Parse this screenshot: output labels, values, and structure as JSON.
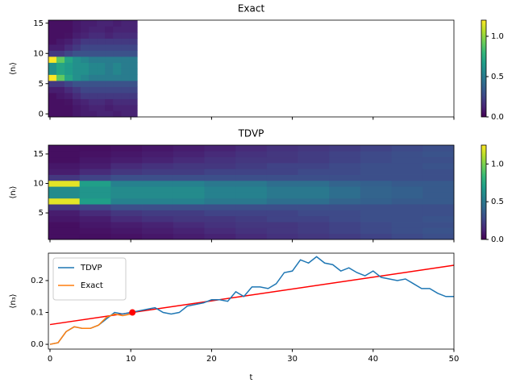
{
  "chart_data": [
    {
      "type": "heatmap",
      "title": "Exact",
      "y_label": "⟨nᵢ⟩",
      "xlim": [
        -0.2,
        50
      ],
      "xticks": [
        0,
        10,
        20,
        30,
        40,
        50
      ],
      "ylim": [
        -0.5,
        15.5
      ],
      "yticks": [
        0,
        5,
        10,
        15
      ],
      "image_xlim": [
        -0.2,
        10.8
      ],
      "clim": [
        0,
        1.2
      ],
      "cticks": [
        {
          "value": 0,
          "label": "0.0"
        },
        {
          "value": 0.5,
          "label": "0.5"
        },
        {
          "value": 1,
          "label": "1.0"
        }
      ],
      "z": [
        [
          0.05,
          0.05,
          0.05,
          0.08,
          0.1,
          0.1,
          0.12,
          0.12,
          0.1,
          0.12,
          0.12
        ],
        [
          0.05,
          0.05,
          0.05,
          0.08,
          0.1,
          0.12,
          0.12,
          0.1,
          0.12,
          0.12,
          0.12
        ],
        [
          0.05,
          0.05,
          0.06,
          0.1,
          0.12,
          0.15,
          0.15,
          0.12,
          0.15,
          0.15,
          0.15
        ],
        [
          0.05,
          0.08,
          0.1,
          0.15,
          0.2,
          0.2,
          0.2,
          0.2,
          0.2,
          0.2,
          0.2
        ],
        [
          0.1,
          0.1,
          0.15,
          0.2,
          0.25,
          0.25,
          0.25,
          0.25,
          0.25,
          0.25,
          0.25
        ],
        [
          0.2,
          0.2,
          0.25,
          0.3,
          0.3,
          0.3,
          0.3,
          0.3,
          0.3,
          0.3,
          0.3
        ],
        [
          1.2,
          0.9,
          0.7,
          0.6,
          0.55,
          0.5,
          0.5,
          0.5,
          0.5,
          0.5,
          0.5
        ],
        [
          0.6,
          0.7,
          0.65,
          0.6,
          0.6,
          0.55,
          0.55,
          0.5,
          0.55,
          0.5,
          0.5
        ],
        [
          0.6,
          0.7,
          0.65,
          0.6,
          0.6,
          0.55,
          0.55,
          0.5,
          0.55,
          0.5,
          0.5
        ],
        [
          1.2,
          0.9,
          0.7,
          0.6,
          0.55,
          0.5,
          0.5,
          0.5,
          0.5,
          0.5,
          0.5
        ],
        [
          0.2,
          0.2,
          0.25,
          0.3,
          0.3,
          0.3,
          0.3,
          0.3,
          0.3,
          0.3,
          0.3
        ],
        [
          0.1,
          0.1,
          0.15,
          0.2,
          0.25,
          0.25,
          0.25,
          0.25,
          0.25,
          0.25,
          0.25
        ],
        [
          0.05,
          0.08,
          0.1,
          0.15,
          0.2,
          0.2,
          0.2,
          0.2,
          0.2,
          0.2,
          0.2
        ],
        [
          0.05,
          0.05,
          0.06,
          0.1,
          0.12,
          0.15,
          0.15,
          0.12,
          0.15,
          0.15,
          0.15
        ],
        [
          0.05,
          0.05,
          0.05,
          0.08,
          0.1,
          0.12,
          0.12,
          0.1,
          0.12,
          0.12,
          0.12
        ],
        [
          0.05,
          0.05,
          0.05,
          0.08,
          0.1,
          0.1,
          0.12,
          0.12,
          0.1,
          0.12,
          0.12
        ]
      ]
    },
    {
      "type": "heatmap",
      "title": "TDVP",
      "y_label": "⟨nᵢ⟩",
      "xlim": [
        -0.2,
        50
      ],
      "xticks": [
        0,
        10,
        20,
        30,
        40,
        50
      ],
      "ylim": [
        0.5,
        16.5
      ],
      "yticks": [
        5,
        10,
        15
      ],
      "image_xlim": [
        -0.2,
        50
      ],
      "clim": [
        0,
        1.25
      ],
      "cticks": [
        {
          "value": 0,
          "label": "0.0"
        },
        {
          "value": 0.5,
          "label": "0.5"
        },
        {
          "value": 1,
          "label": "1.0"
        }
      ],
      "z": [
        [
          0.05,
          0.05,
          0.06,
          0.08,
          0.1,
          0.12,
          0.15,
          0.18,
          0.2,
          0.22,
          0.25,
          0.28,
          0.3
        ],
        [
          0.05,
          0.06,
          0.08,
          0.1,
          0.12,
          0.15,
          0.18,
          0.2,
          0.22,
          0.25,
          0.28,
          0.3,
          0.32
        ],
        [
          0.05,
          0.08,
          0.1,
          0.12,
          0.15,
          0.18,
          0.2,
          0.2,
          0.22,
          0.25,
          0.28,
          0.3,
          0.3
        ],
        [
          0.08,
          0.1,
          0.15,
          0.18,
          0.2,
          0.2,
          0.22,
          0.25,
          0.25,
          0.28,
          0.3,
          0.3,
          0.32
        ],
        [
          0.1,
          0.15,
          0.2,
          0.22,
          0.22,
          0.25,
          0.25,
          0.25,
          0.28,
          0.28,
          0.3,
          0.3,
          0.3
        ],
        [
          0.2,
          0.25,
          0.3,
          0.3,
          0.3,
          0.3,
          0.3,
          0.3,
          0.3,
          0.3,
          0.3,
          0.3,
          0.3
        ],
        [
          1.2,
          0.7,
          0.55,
          0.55,
          0.55,
          0.5,
          0.5,
          0.45,
          0.45,
          0.4,
          0.38,
          0.35,
          0.35
        ],
        [
          0.6,
          0.65,
          0.6,
          0.6,
          0.6,
          0.55,
          0.55,
          0.5,
          0.5,
          0.45,
          0.4,
          0.38,
          0.35
        ],
        [
          0.6,
          0.65,
          0.6,
          0.6,
          0.6,
          0.55,
          0.55,
          0.5,
          0.5,
          0.45,
          0.4,
          0.38,
          0.35
        ],
        [
          1.2,
          0.7,
          0.55,
          0.55,
          0.55,
          0.5,
          0.5,
          0.45,
          0.45,
          0.4,
          0.38,
          0.35,
          0.35
        ],
        [
          0.2,
          0.25,
          0.3,
          0.3,
          0.3,
          0.3,
          0.3,
          0.3,
          0.3,
          0.3,
          0.3,
          0.3,
          0.3
        ],
        [
          0.1,
          0.15,
          0.2,
          0.22,
          0.22,
          0.25,
          0.25,
          0.25,
          0.28,
          0.28,
          0.3,
          0.3,
          0.3
        ],
        [
          0.08,
          0.1,
          0.15,
          0.18,
          0.2,
          0.2,
          0.22,
          0.25,
          0.25,
          0.28,
          0.3,
          0.3,
          0.32
        ],
        [
          0.05,
          0.08,
          0.1,
          0.12,
          0.15,
          0.18,
          0.2,
          0.2,
          0.22,
          0.25,
          0.28,
          0.3,
          0.3
        ],
        [
          0.05,
          0.06,
          0.08,
          0.1,
          0.12,
          0.15,
          0.18,
          0.2,
          0.22,
          0.25,
          0.28,
          0.3,
          0.32
        ],
        [
          0.05,
          0.05,
          0.06,
          0.08,
          0.1,
          0.12,
          0.15,
          0.18,
          0.2,
          0.22,
          0.25,
          0.28,
          0.3
        ]
      ]
    },
    {
      "type": "line",
      "x_label": "t",
      "y_label": "⟨n₃⟩",
      "xlim": [
        -0.2,
        50
      ],
      "xticks": [
        0,
        10,
        20,
        30,
        40,
        50
      ],
      "ylim": [
        -0.015,
        0.286
      ],
      "yticks": [
        {
          "value": 0,
          "label": "0.0"
        },
        {
          "value": 0.1,
          "label": "0.1"
        },
        {
          "value": 0.2,
          "label": "0.2"
        }
      ],
      "legend": "upper left",
      "series": [
        {
          "name": "TDVP",
          "color": "#1f77b4",
          "x": [
            0,
            1,
            2,
            3,
            4,
            5,
            6,
            7,
            8,
            9,
            10,
            11,
            12,
            13,
            14,
            15,
            16,
            17,
            18,
            19,
            20,
            21,
            22,
            23,
            24,
            25,
            26,
            27,
            28,
            29,
            30,
            31,
            32,
            33,
            34,
            35,
            36,
            37,
            38,
            39,
            40,
            41,
            42,
            43,
            44,
            45,
            46,
            47,
            48,
            49,
            50
          ],
          "values": [
            0,
            0.005,
            0.04,
            0.055,
            0.05,
            0.05,
            0.06,
            0.08,
            0.1,
            0.095,
            0.1,
            0.105,
            0.11,
            0.115,
            0.1,
            0.095,
            0.1,
            0.12,
            0.125,
            0.13,
            0.14,
            0.14,
            0.135,
            0.165,
            0.15,
            0.18,
            0.18,
            0.175,
            0.19,
            0.225,
            0.23,
            0.265,
            0.255,
            0.275,
            0.255,
            0.25,
            0.23,
            0.24,
            0.225,
            0.215,
            0.23,
            0.21,
            0.205,
            0.2,
            0.205,
            0.19,
            0.175,
            0.175,
            0.16,
            0.15,
            0.15
          ]
        },
        {
          "name": "Exact",
          "color": "#ff7f0e",
          "x": [
            0,
            1,
            2,
            3,
            4,
            5,
            6,
            7,
            8,
            9,
            10
          ],
          "values": [
            0,
            0.005,
            0.04,
            0.055,
            0.05,
            0.05,
            0.06,
            0.085,
            0.095,
            0.09,
            0.095
          ]
        }
      ],
      "trend_line": {
        "x": [
          0,
          50
        ],
        "values": [
          0.062,
          0.248
        ],
        "color": "#ff0000"
      },
      "marker": {
        "x": 10.2,
        "value": 0.1,
        "color": "#ff0000"
      }
    }
  ]
}
